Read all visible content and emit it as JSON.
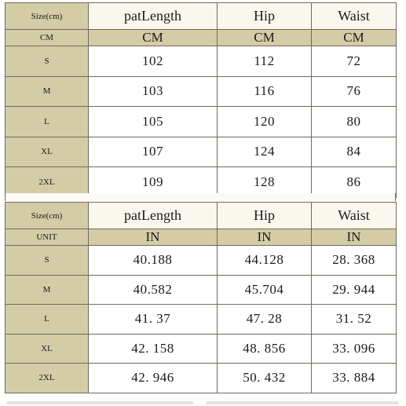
{
  "tables": [
    {
      "header": [
        "Size(cm)",
        "patLength",
        "Hip",
        "Waist"
      ],
      "unit_row": [
        "CM",
        "CM",
        "CM",
        "CM"
      ],
      "rows": [
        [
          "S",
          "102",
          "112",
          "72"
        ],
        [
          "M",
          "103",
          "116",
          "76"
        ],
        [
          "L",
          "105",
          "120",
          "80"
        ],
        [
          "XL",
          "107",
          "124",
          "84"
        ],
        [
          "2XL",
          "109",
          "128",
          "86"
        ]
      ]
    },
    {
      "header": [
        "Size(cm)",
        "patLength",
        "Hip",
        "Waist"
      ],
      "unit_row": [
        "UNIT",
        "IN",
        "IN",
        "IN"
      ],
      "rows": [
        [
          "S",
          "40.188",
          "44.128",
          "28. 368"
        ],
        [
          "M",
          "40.582",
          "45.704",
          "29. 944"
        ],
        [
          "L",
          "41. 37",
          "47. 28",
          "31. 52"
        ],
        [
          "XL",
          "42. 158",
          "48. 856",
          "33. 096"
        ],
        [
          "2XL",
          "42. 946",
          "50. 432",
          "33. 884"
        ]
      ]
    }
  ],
  "colors": {
    "label_cell": "#d4cca6",
    "header_cell": "#faf8ee",
    "data_cell": "#ffffff",
    "border": "#6e6a5c"
  }
}
